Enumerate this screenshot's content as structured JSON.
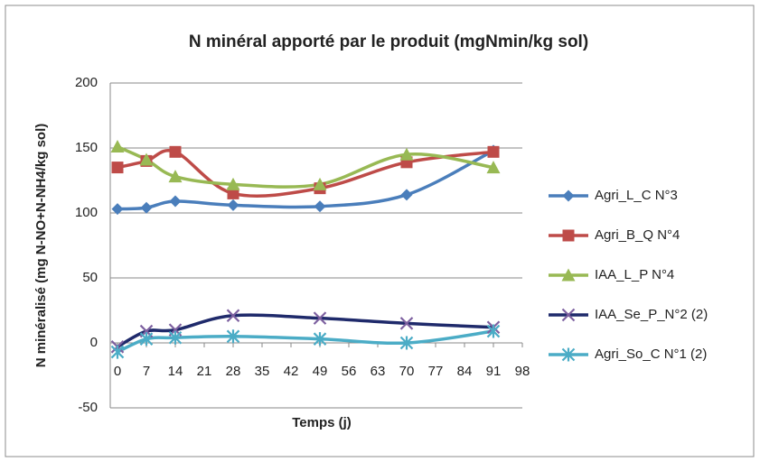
{
  "chart_data": {
    "type": "line",
    "title": "N minéral apporté par le produit (mgNmin/kg sol)",
    "x_label": "Temps (j)",
    "y_label": "N minéralisé (mg N-NO+N-NH4/kg sol)",
    "x": [
      0,
      7,
      14,
      28,
      49,
      70,
      91
    ],
    "xlim": [
      0,
      98
    ],
    "xticks": [
      0,
      7,
      14,
      21,
      28,
      35,
      42,
      49,
      56,
      63,
      70,
      77,
      84,
      91,
      98
    ],
    "ylim": [
      -50,
      200
    ],
    "yticks": [
      -50,
      0,
      50,
      100,
      150,
      200
    ],
    "grid": true,
    "smooth": true,
    "legend": "right",
    "series": [
      {
        "name": "Agri_L_C N°3",
        "color": "#4a7ebb",
        "marker": "diamond",
        "marker_color": "#4a7ebb",
        "values": [
          103,
          104,
          109,
          106,
          105,
          114,
          148
        ]
      },
      {
        "name": "Agri_B_Q N°4",
        "color": "#be4b48",
        "marker": "square",
        "marker_color": "#be4b48",
        "values": [
          135,
          140,
          147,
          115,
          119,
          139,
          147
        ]
      },
      {
        "name": "IAA_L_P N°4",
        "color": "#98b954",
        "marker": "triangle",
        "marker_color": "#98b954",
        "values": [
          151,
          141,
          128,
          122,
          122,
          145,
          135
        ]
      },
      {
        "name": "IAA_Se_P_N°2 (2)",
        "color": "#1f2a6b",
        "marker": "x",
        "marker_color": "#7d60a0",
        "values": [
          -3,
          9,
          10,
          21,
          19,
          15,
          12
        ]
      },
      {
        "name": "Agri_So_C N°1 (2)",
        "color": "#4bacc6",
        "marker": "star",
        "marker_color": "#4bacc6",
        "values": [
          -7,
          3,
          4,
          5,
          3,
          0,
          9
        ]
      }
    ]
  }
}
